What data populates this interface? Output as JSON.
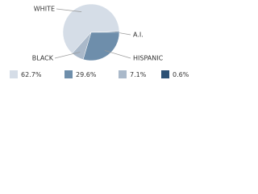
{
  "chart_data": {
    "type": "pie",
    "categories": [
      "WHITE",
      "HISPANIC",
      "BLACK",
      "A.I."
    ],
    "values": [
      62.7,
      29.6,
      7.1,
      0.6
    ],
    "value_labels": [
      "62.7%",
      "29.6%",
      "7.1%",
      "0.6%"
    ],
    "colors": [
      "#d5dde7",
      "#6e8eab",
      "#aab9ca",
      "#2d5175"
    ]
  }
}
